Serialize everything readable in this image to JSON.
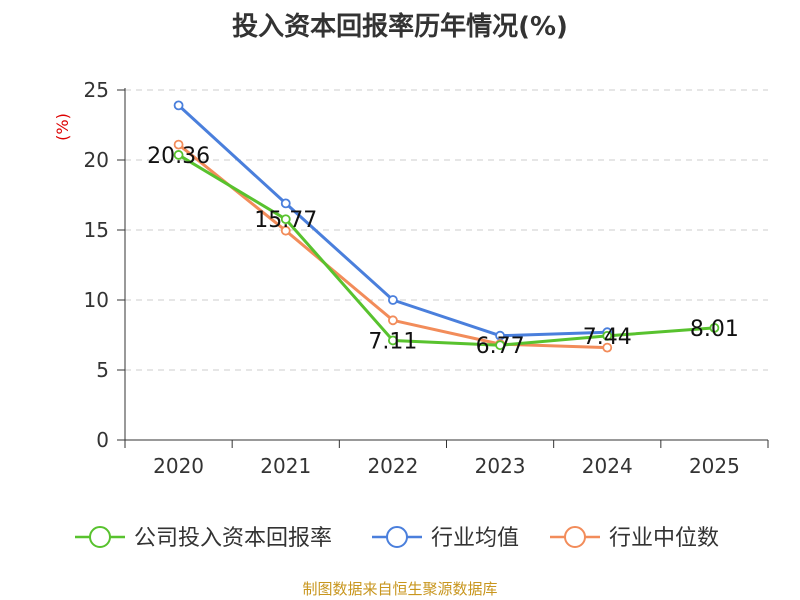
{
  "chart_data": {
    "type": "line",
    "title": "投入资本回报率历年情况(%)",
    "ylabel": "(%)",
    "xlabel": "",
    "categories": [
      "2020",
      "2021",
      "2022",
      "2023",
      "2024",
      "2025"
    ],
    "ylim": [
      0,
      25
    ],
    "yticks": [
      0,
      5,
      10,
      15,
      20,
      25
    ],
    "grid": "horizontal-dashed",
    "legend_position": "bottom",
    "series": [
      {
        "name": "公司投入资本回报率",
        "color": "#58c22e",
        "values": [
          20.36,
          15.77,
          7.11,
          6.77,
          7.44,
          8.01
        ],
        "labels": [
          "20.36",
          "15.77",
          "7.11",
          "6.77",
          "7.44",
          "8.01"
        ]
      },
      {
        "name": "行业均值",
        "color": "#4a7fdc",
        "values": [
          23.9,
          16.9,
          10.0,
          7.45,
          7.7,
          null
        ]
      },
      {
        "name": "行业中位数",
        "color": "#f28c5a",
        "values": [
          21.1,
          14.95,
          8.55,
          6.85,
          6.6,
          null
        ]
      }
    ]
  },
  "footer": {
    "source": "制图数据来自恒生聚源数据库"
  }
}
